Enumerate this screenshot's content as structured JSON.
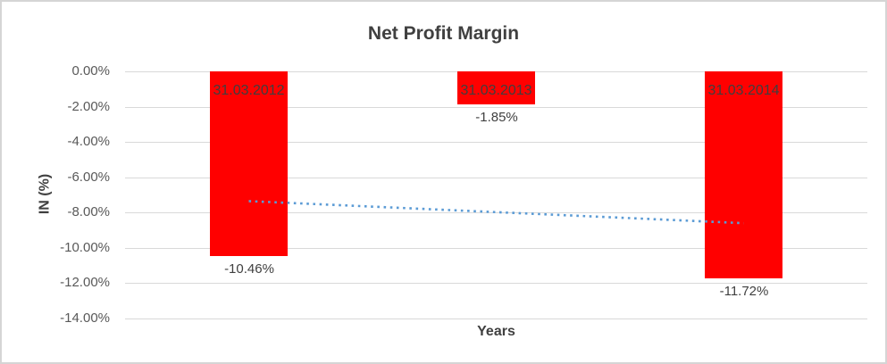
{
  "window": {
    "background": "#FFFFFF",
    "border_color": "#D5D5D5"
  },
  "chart_data": {
    "type": "bar",
    "title": "Net Profit Margin",
    "xlabel": "Years",
    "ylabel": "IN (%)",
    "categories": [
      "31.03.2012",
      "31.03.2013",
      "31.03.2014"
    ],
    "values": [
      -10.46,
      -1.85,
      -11.72
    ],
    "value_labels": [
      "-10.46%",
      "-1.85%",
      "-11.72%"
    ],
    "category_label_position": "inside-top-of-bar",
    "value_label_position": "below-bar",
    "ylim": [
      -14,
      0
    ],
    "ytick_step": 2,
    "ytick_labels": [
      "0.00%",
      "-2.00%",
      "-4.00%",
      "-6.00%",
      "-8.00%",
      "-10.00%",
      "-12.00%",
      "-14.00%"
    ],
    "grid": true,
    "legend": "none",
    "colors": {
      "bar": "#FF0000",
      "title": "#404040",
      "axis_title": "#404040",
      "tick_label": "#595959",
      "category_label": "#3F3F3F",
      "value_label": "#404040",
      "gridline": "#D9D9D9",
      "trendline": "#5B9BD5"
    },
    "trendline": {
      "type": "linear",
      "style": "dotted",
      "color": "#5B9BD5",
      "start_value": -7.35,
      "end_value": -8.6
    }
  }
}
